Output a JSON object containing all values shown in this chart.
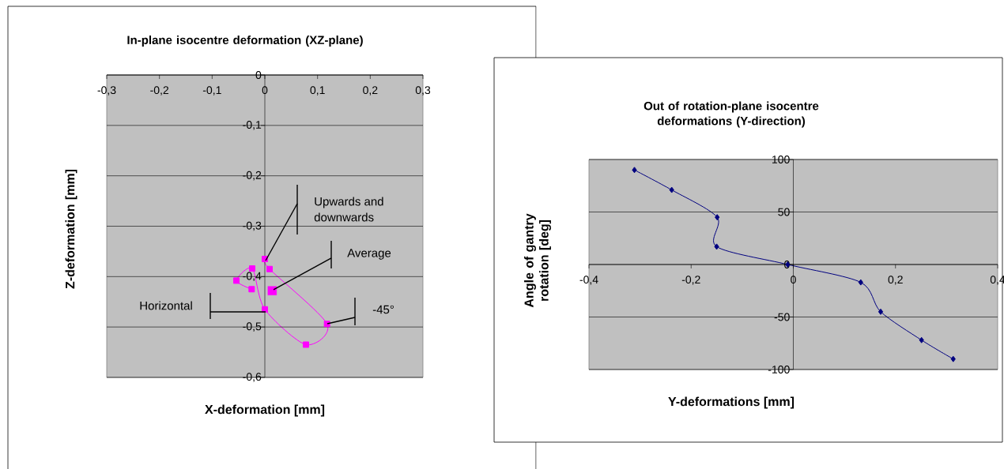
{
  "chart_data": [
    {
      "type": "line",
      "title": "In-plane isocentre deformation (XZ-plane)",
      "xlabel": "X-deformation [mm]",
      "ylabel": "Z-deformation [mm]",
      "series": [
        {
          "type": "line",
          "color": "#ff00ff",
          "x": [
            0.0,
            0.009,
            0.118,
            0.078,
            0.0,
            -0.024,
            -0.054,
            -0.025
          ],
          "values": [
            -0.365,
            -0.385,
            -0.494,
            -0.535,
            -0.465,
            -0.384,
            -0.408,
            -0.425
          ]
        },
        {
          "type": "scatter",
          "color": "#ff00ff",
          "x": [
            0.014
          ],
          "values": [
            -0.428
          ]
        }
      ],
      "xlim": [
        -0.3,
        0.3
      ],
      "ylim": [
        -0.6,
        0
      ],
      "xticks": [
        {
          "value": -0.3,
          "label": "-0,3"
        },
        {
          "value": -0.2,
          "label": "-0,2"
        },
        {
          "value": -0.1,
          "label": "-0,1"
        },
        0,
        {
          "value": 0.1,
          "label": "0,1"
        },
        {
          "value": 0.2,
          "label": "0,2"
        },
        {
          "value": 0.3,
          "label": "0,3"
        }
      ],
      "yticks": [
        0,
        {
          "value": -0.1,
          "label": "-0,1"
        },
        {
          "value": -0.2,
          "label": "-0,2"
        },
        {
          "value": -0.3,
          "label": "-0,3"
        },
        {
          "value": -0.4,
          "label": "-0,4"
        },
        {
          "value": -0.5,
          "label": "-0,5"
        },
        {
          "value": -0.6,
          "label": "-0,6"
        }
      ],
      "annotations": [
        "Upwards and downwards",
        "Average",
        "Horizontal",
        "-45°"
      ],
      "grid": "y",
      "marker": "square",
      "line_style": "solid"
    },
    {
      "type": "line",
      "title": "Out of rotation-plane isocentre deformations (Y-direction)",
      "xlabel": "Y-deformations [mm]",
      "ylabel": "Angle of gantry rotation [deg]",
      "series": [
        {
          "color": "#000080",
          "x": [
            -0.311,
            -0.238,
            -0.149,
            -0.15,
            -0.011,
            0.132,
            0.171,
            0.251,
            0.313
          ],
          "values": [
            90,
            71,
            45,
            17,
            0,
            -17,
            -45,
            -72,
            -90
          ]
        }
      ],
      "xlim": [
        -0.4,
        0.4
      ],
      "ylim": [
        -100,
        100
      ],
      "xticks": [
        {
          "value": -0.4,
          "label": "-0,4"
        },
        {
          "value": -0.2,
          "label": "-0,2"
        },
        0,
        {
          "value": 0.2,
          "label": "0,2"
        },
        {
          "value": 0.4,
          "label": "0,4"
        }
      ],
      "yticks": [
        100,
        50,
        0,
        -50,
        -100
      ],
      "grid": "y",
      "marker": "diamond",
      "line_style": "solid"
    }
  ]
}
